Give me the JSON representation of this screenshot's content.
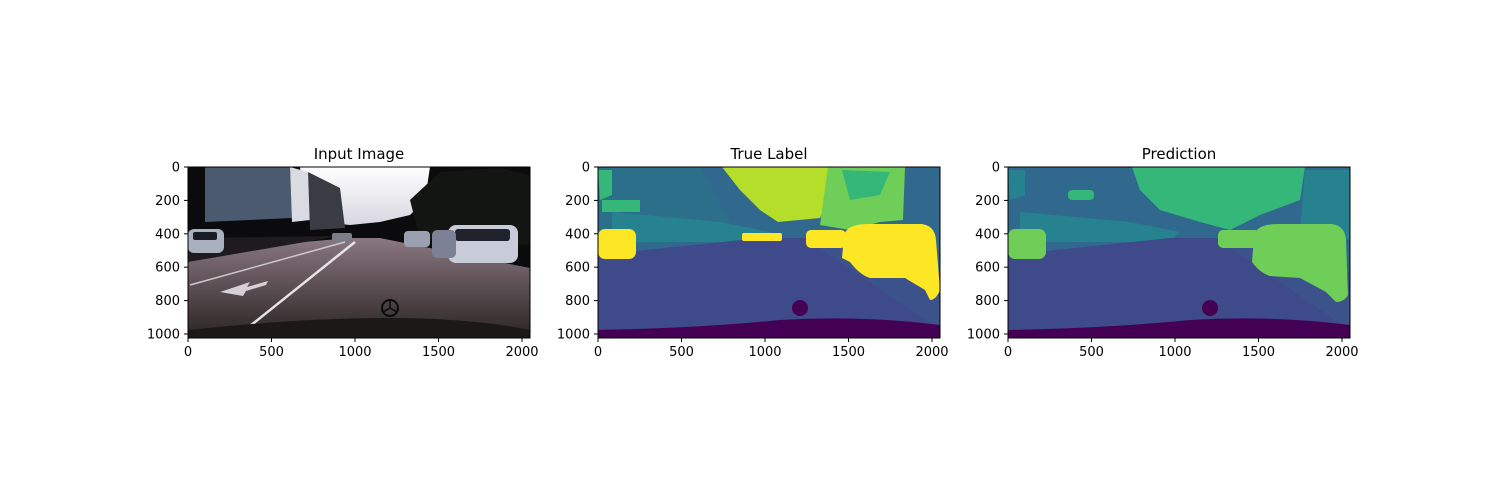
{
  "panels": [
    {
      "title": "Input Image",
      "kind": "photo",
      "x_ticks": [
        "0",
        "500",
        "1000",
        "1500",
        "2000"
      ],
      "y_ticks": [
        "0",
        "200",
        "400",
        "600",
        "800",
        "1000"
      ]
    },
    {
      "title": "True Label",
      "kind": "segmentation",
      "x_ticks": [
        "0",
        "500",
        "1000",
        "1500",
        "2000"
      ],
      "y_ticks": [
        "0",
        "200",
        "400",
        "600",
        "800",
        "1000"
      ]
    },
    {
      "title": "Prediction",
      "kind": "segmentation",
      "x_ticks": [
        "0",
        "500",
        "1000",
        "1500",
        "2000"
      ],
      "y_ticks": [
        "0",
        "200",
        "400",
        "600",
        "800",
        "1000"
      ]
    }
  ],
  "image_extent": {
    "x": [
      0,
      2048
    ],
    "y": [
      1024,
      0
    ]
  },
  "colors": {
    "frame": "#000000",
    "viridis_purple": "#440154",
    "viridis_indigo": "#3e4a89",
    "viridis_blue": "#31688e",
    "viridis_teal": "#26828e",
    "viridis_green": "#35b779",
    "viridis_lightgreen": "#6ece58",
    "viridis_yellowgreen": "#b5de2b",
    "viridis_yellow": "#fde725"
  }
}
